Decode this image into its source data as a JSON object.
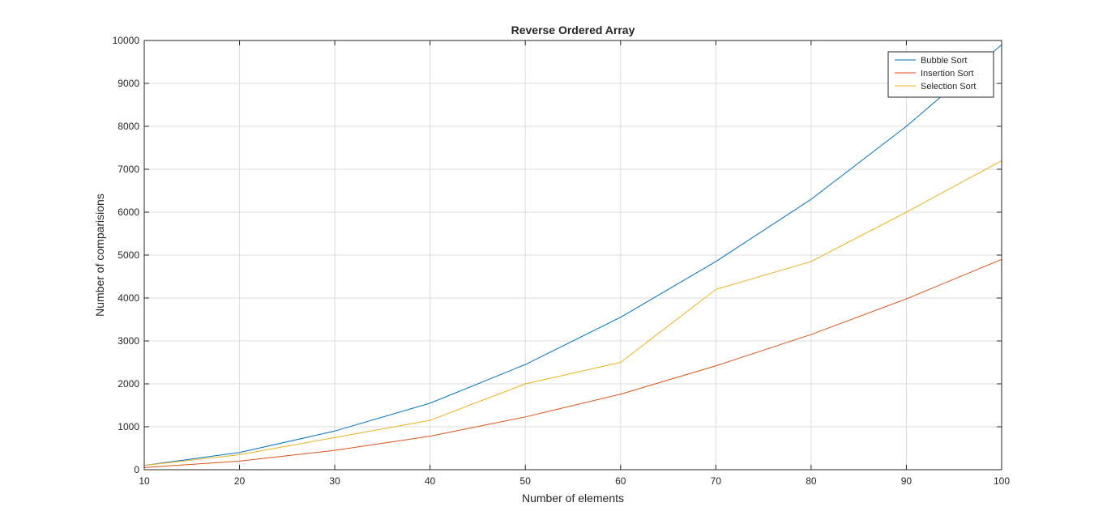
{
  "chart_data": {
    "type": "line",
    "title": "Reverse Ordered Array",
    "xlabel": "Number of elements",
    "ylabel": "Number of comparisions",
    "xlim": [
      10,
      100
    ],
    "ylim": [
      0,
      10000
    ],
    "x": [
      10,
      20,
      30,
      40,
      50,
      60,
      70,
      80,
      90,
      100
    ],
    "xticks": [
      "10",
      "20",
      "30",
      "40",
      "50",
      "60",
      "70",
      "80",
      "90",
      "100"
    ],
    "yticks": [
      "0",
      "1000",
      "2000",
      "3000",
      "4000",
      "5000",
      "6000",
      "7000",
      "8000",
      "9000",
      "10000"
    ],
    "grid": true,
    "legend_position": "top-right",
    "series": [
      {
        "name": "Bubble Sort",
        "color": "#0072BD",
        "values": [
          100,
          400,
          900,
          1550,
          2450,
          3550,
          4850,
          6300,
          8000,
          9900
        ]
      },
      {
        "name": "Insertion Sort",
        "color": "#D95319",
        "values": [
          50,
          200,
          450,
          780,
          1230,
          1760,
          2420,
          3150,
          3980,
          4900
        ]
      },
      {
        "name": "Selection Sort",
        "color": "#EDB120",
        "values": [
          100,
          350,
          750,
          1150,
          2000,
          2500,
          4200,
          4850,
          6000,
          7200
        ]
      }
    ]
  }
}
